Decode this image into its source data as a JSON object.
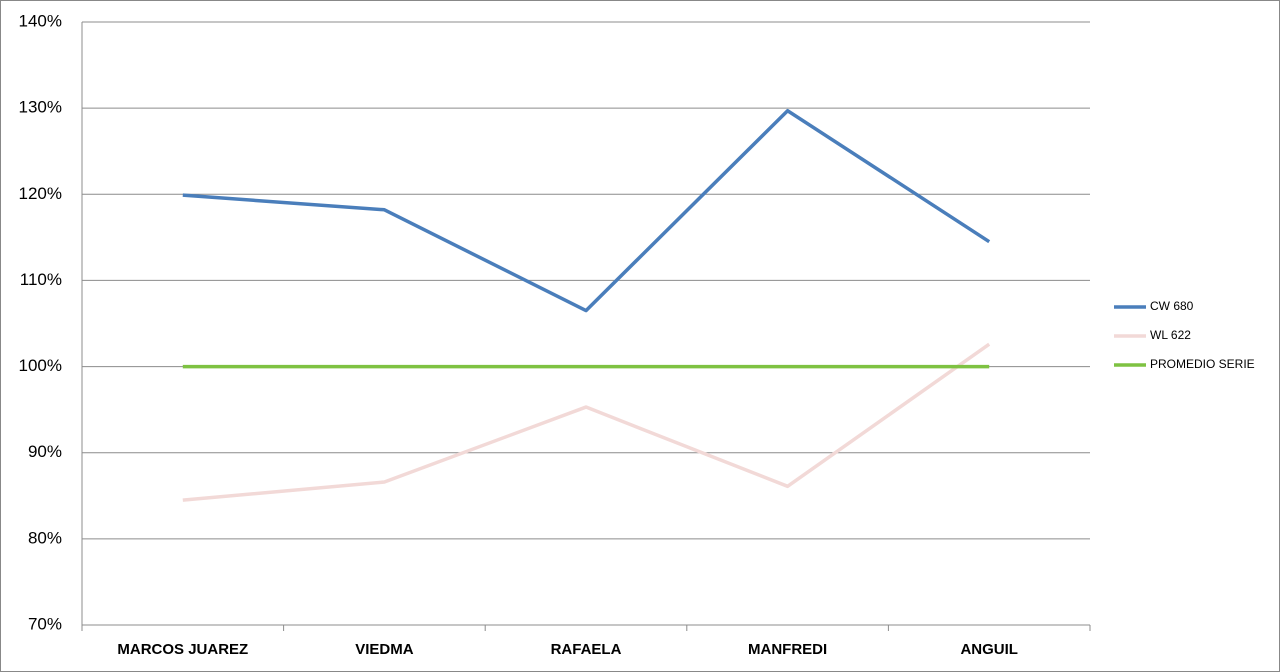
{
  "chart_data": {
    "type": "line",
    "categories": [
      "MARCOS JUAREZ",
      "VIEDMA",
      "RAFAELA",
      "MANFREDI",
      "ANGUIL"
    ],
    "series": [
      {
        "name": "CW 680",
        "color": "#4a7ebb",
        "values": [
          119.9,
          118.2,
          106.5,
          129.7,
          114.5
        ]
      },
      {
        "name": "WL 622",
        "color": "#f2d9d7",
        "values": [
          84.5,
          86.6,
          95.3,
          86.1,
          102.6
        ]
      },
      {
        "name": "PROMEDIO SERIE",
        "color": "#7ec242",
        "values": [
          100,
          100,
          100,
          100,
          100
        ]
      }
    ],
    "ylim": [
      70,
      140
    ],
    "yticks": [
      {
        "value": 70,
        "label": "70%"
      },
      {
        "value": 80,
        "label": "80%"
      },
      {
        "value": 90,
        "label": "90%"
      },
      {
        "value": 100,
        "label": "100%"
      },
      {
        "value": 110,
        "label": "110%"
      },
      {
        "value": 120,
        "label": "120%"
      },
      {
        "value": 130,
        "label": "130%"
      },
      {
        "value": 140,
        "label": "140%"
      }
    ],
    "grid": true,
    "legend": "right"
  }
}
